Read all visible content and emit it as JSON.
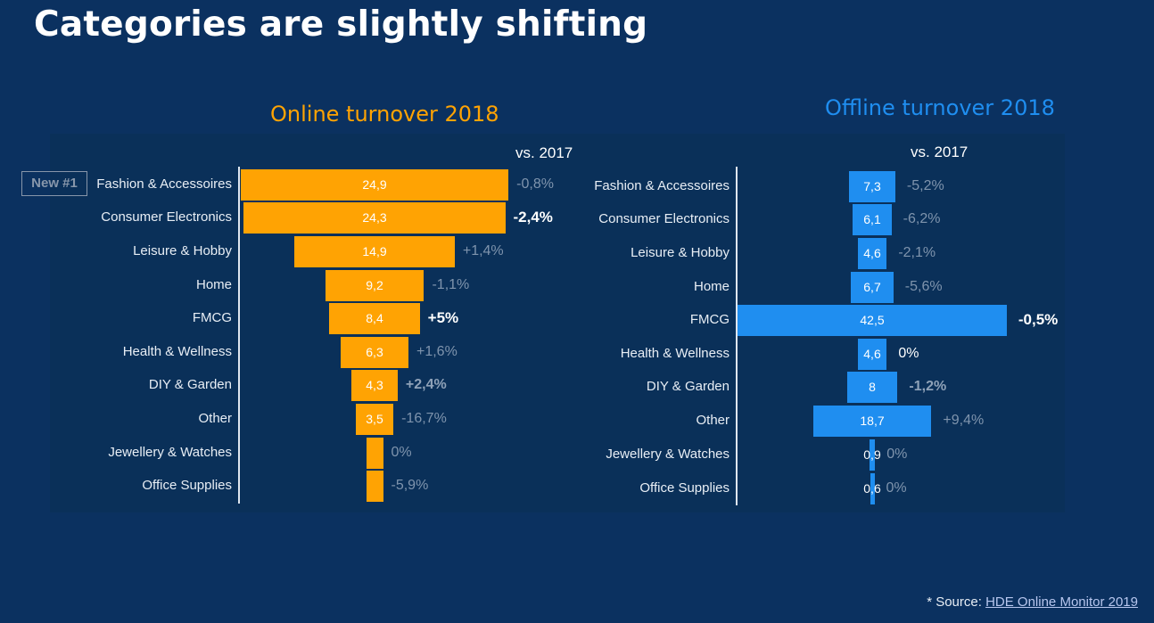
{
  "slide": {
    "title": "Categories are slightly shifting",
    "badge": "New #1",
    "source_prefix": "* Source: ",
    "source_link": "HDE Online Monitor 2019"
  },
  "colors": {
    "online": "#ffa303",
    "offline": "#1f8ef0",
    "background": "#0b3160"
  },
  "chart_data": [
    {
      "type": "bar",
      "title": "Online turnover 2018",
      "change_header": "vs. 2017",
      "categories": [
        "Fashion & Accessoires",
        "Consumer Electronics",
        "Leisure & Hobby",
        "Home",
        "FMCG",
        "Health & Wellness",
        "DIY & Garden",
        "Other",
        "Jewellery & Watches",
        "Office Supplies"
      ],
      "values": [
        24.9,
        24.3,
        14.9,
        9.2,
        8.4,
        6.3,
        4.3,
        3.5,
        1.3,
        1.2
      ],
      "value_labels": [
        "24,9",
        "24,3",
        "14,9",
        "9,2",
        "8,4",
        "6,3",
        "4,3",
        "3,5",
        "",
        ""
      ],
      "changes": [
        "-0,8%",
        "-2,4%",
        "+1,4%",
        "-1,1%",
        "+5%",
        "+1,6%",
        "+2,4%",
        "-16,7%",
        "0%",
        "-5,9%"
      ],
      "change_style": [
        "muted",
        "bold",
        "muted",
        "muted",
        "bold",
        "muted",
        "gray-bold",
        "muted",
        "muted",
        "muted"
      ]
    },
    {
      "type": "bar",
      "title": "Offline turnover 2018",
      "change_header": "vs. 2017",
      "categories": [
        "Fashion & Accessoires",
        "Consumer Electronics",
        "Leisure & Hobby",
        "Home",
        "FMCG",
        "Health & Wellness",
        "DIY & Garden",
        "Other",
        "Jewellery & Watches",
        "Office Supplies"
      ],
      "values": [
        7.3,
        6.1,
        4.6,
        6.7,
        42.5,
        4.6,
        8,
        18.7,
        0.9,
        0.6
      ],
      "value_labels": [
        "7,3",
        "6,1",
        "4,6",
        "6,7",
        "42,5",
        "4,6",
        "8",
        "18,7",
        "0,9",
        "0,6"
      ],
      "changes": [
        "-5,2%",
        "-6,2%",
        "-2,1%",
        "-5,6%",
        "-0,5%",
        "0%",
        "-1,2%",
        "+9,4%",
        "0%",
        "0%"
      ],
      "change_style": [
        "muted",
        "muted",
        "muted",
        "muted",
        "bold",
        "white",
        "gray-bold",
        "muted",
        "muted",
        "muted"
      ]
    }
  ]
}
